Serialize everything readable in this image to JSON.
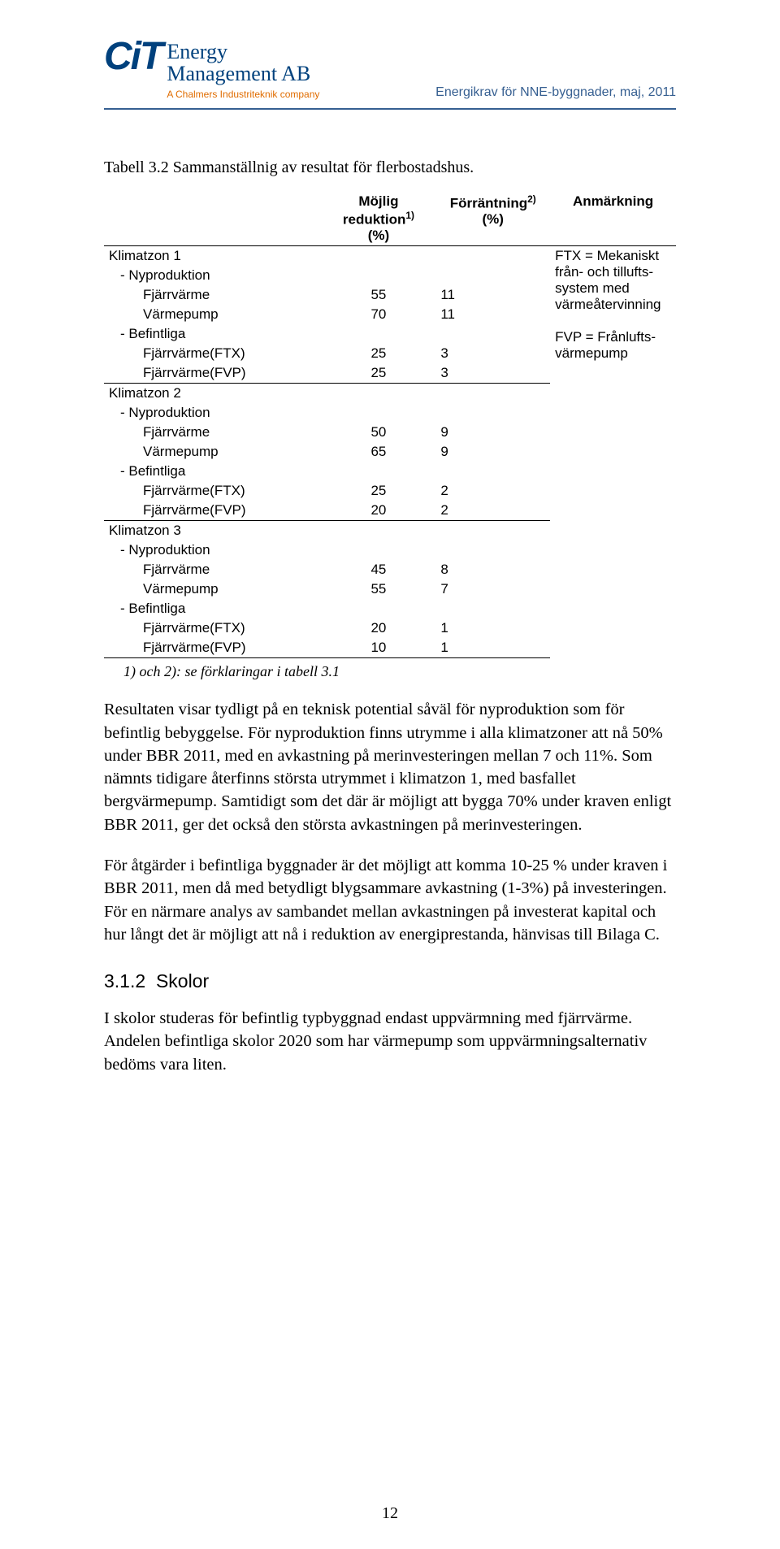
{
  "header": {
    "logo_mark": "CiT",
    "logo_line1": "Energy",
    "logo_line2": "Management AB",
    "logo_tagline": "A Chalmers Industriteknik company",
    "doc_meta": "Energikrav för NNE-byggnader, maj, 2011"
  },
  "table_caption": "Tabell 3.2  Sammanställnig av resultat för flerbostadshus.",
  "table": {
    "col_headers": {
      "label": "",
      "reduction": "Möjlig reduktion",
      "reduction_sup": "1)",
      "reduction_unit": "(%)",
      "return": "Förräntning",
      "return_sup": "2)",
      "return_unit": "(%)",
      "note": "Anmärkning"
    },
    "zones": [
      {
        "title": "Klimatzon 1",
        "remark_lines": [
          "FTX = Mekaniskt",
          "från- och tillufts-",
          "system med",
          "värmeåtervinning",
          "",
          "FVP = Frånlufts-",
          "värmepump"
        ],
        "groups": [
          {
            "name": "- Nyproduktion",
            "rows": [
              {
                "label": "Fjärrvärme",
                "reduction": "55",
                "return": "11"
              },
              {
                "label": "Värmepump",
                "reduction": "70",
                "return": "11"
              }
            ]
          },
          {
            "name": "- Befintliga",
            "rows": [
              {
                "label": "Fjärrvärme(FTX)",
                "reduction": "25",
                "return": "3"
              },
              {
                "label": "Fjärrvärme(FVP)",
                "reduction": "25",
                "return": "3"
              }
            ]
          }
        ]
      },
      {
        "title": "Klimatzon 2",
        "remark_lines": [],
        "groups": [
          {
            "name": "- Nyproduktion",
            "rows": [
              {
                "label": "Fjärrvärme",
                "reduction": "50",
                "return": "9"
              },
              {
                "label": "Värmepump",
                "reduction": "65",
                "return": "9"
              }
            ]
          },
          {
            "name": "- Befintliga",
            "rows": [
              {
                "label": "Fjärrvärme(FTX)",
                "reduction": "25",
                "return": "2"
              },
              {
                "label": "Fjärrvärme(FVP)",
                "reduction": "20",
                "return": "2"
              }
            ]
          }
        ]
      },
      {
        "title": "Klimatzon 3",
        "remark_lines": [],
        "groups": [
          {
            "name": "- Nyproduktion",
            "rows": [
              {
                "label": "Fjärrvärme",
                "reduction": "45",
                "return": "8"
              },
              {
                "label": "Värmepump",
                "reduction": "55",
                "return": "7"
              }
            ]
          },
          {
            "name": "- Befintliga",
            "rows": [
              {
                "label": "Fjärrvärme(FTX)",
                "reduction": "20",
                "return": "1"
              },
              {
                "label": "Fjärrvärme(FVP)",
                "reduction": "10",
                "return": "1"
              }
            ]
          }
        ]
      }
    ]
  },
  "footnote": "1) och 2): se förklaringar i tabell 3.1",
  "paragraphs": {
    "p1": "Resultaten visar tydligt på en teknisk potential såväl för nyproduktion som för befintlig bebyggelse. För nyproduktion finns utrymme i alla klimatzoner att nå 50% under BBR 2011, med en avkastning på merinvesteringen mellan 7 och 11%. Som nämnts tidigare återfinns största utrymmet i klimatzon 1, med basfallet bergvärmepump. Samtidigt som det där är möjligt att bygga 70% under kraven enligt BBR 2011, ger det också den största avkastningen på merinvesteringen.",
    "p2": "För åtgärder i befintliga byggnader är det möjligt att komma 10-25 % under kraven i BBR 2011, men då med betydligt blygsammare avkastning (1-3%) på investeringen. För en närmare analys av sambandet mellan avkastningen på investerat kapital och hur långt det är möjligt att nå i reduktion av energiprestanda, hänvisas till Bilaga C."
  },
  "section": {
    "number": "3.1.2",
    "title": "Skolor"
  },
  "para_schools": "I skolor studeras för befintlig typbyggnad endast uppvärmning med fjärrvärme. Andelen befintliga skolor 2020 som har värmepump som uppvärmningsalternativ bedöms vara liten.",
  "page_number": "12"
}
